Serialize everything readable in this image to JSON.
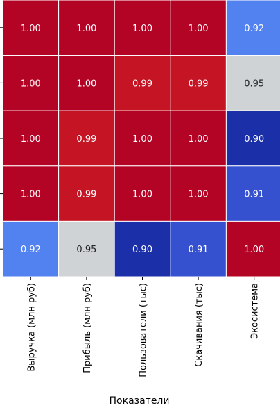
{
  "chart_data": {
    "type": "heatmap",
    "xlabel": "Показатели",
    "ylabel": "",
    "categories": [
      "Выручка (млн руб)",
      "Прибыль (млн руб)",
      "Пользователи (тыс)",
      "Скачивания (тыс)",
      "Экосистема"
    ],
    "y_categories": [
      "",
      "",
      "",
      "",
      ""
    ],
    "values": [
      [
        1.0,
        1.0,
        1.0,
        1.0,
        0.92
      ],
      [
        1.0,
        1.0,
        0.99,
        0.99,
        0.95
      ],
      [
        1.0,
        0.99,
        1.0,
        1.0,
        0.9
      ],
      [
        1.0,
        0.99,
        1.0,
        1.0,
        0.91
      ],
      [
        0.92,
        0.95,
        0.9,
        0.91,
        1.0
      ]
    ],
    "display_values": [
      [
        "1.00",
        "1.00",
        "1.00",
        "1.00",
        "0.92"
      ],
      [
        "1.00",
        "1.00",
        "0.99",
        "0.99",
        "0.95"
      ],
      [
        "1.00",
        "0.99",
        "1.00",
        "1.00",
        "0.90"
      ],
      [
        "1.00",
        "0.99",
        "1.00",
        "1.00",
        "0.91"
      ],
      [
        "0.92",
        "0.95",
        "0.90",
        "0.91",
        "1.00"
      ]
    ],
    "colormap": "coolwarm",
    "annotated": true,
    "grid": false,
    "colors": {
      "min": "#1a2fa8",
      "mid": "#cfd3d6",
      "max": "#b40426"
    }
  }
}
